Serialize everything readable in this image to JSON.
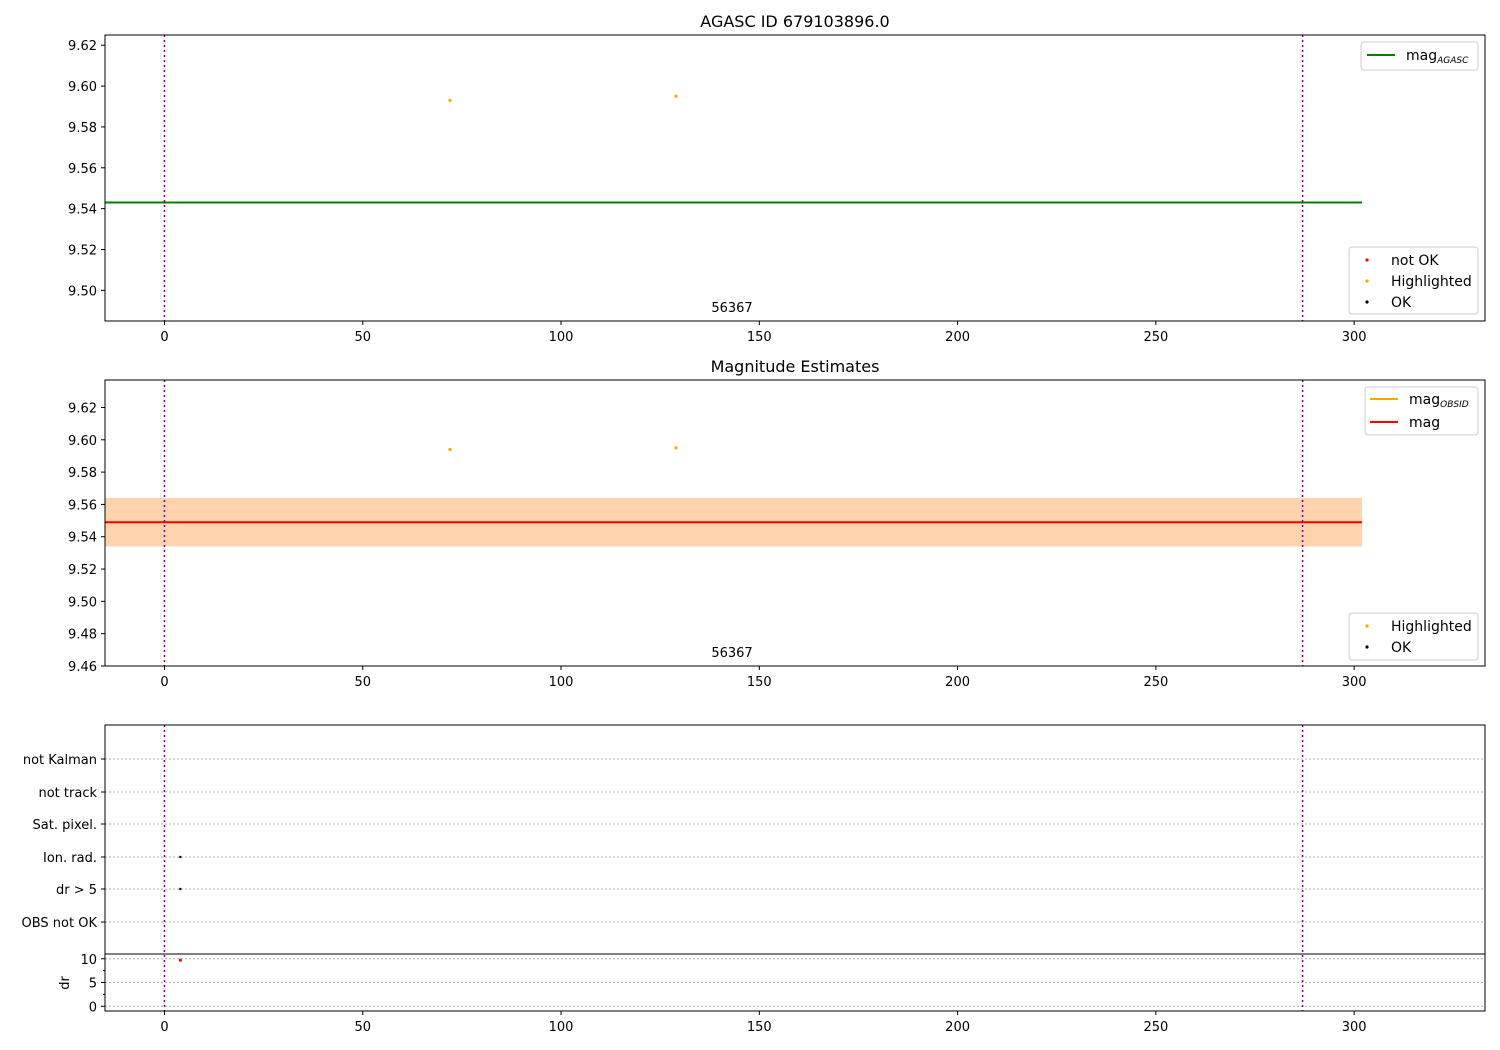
{
  "figure": {
    "background": "#ffffff"
  },
  "chart_data": [
    {
      "type": "scatter",
      "title": "AGASC ID 679103896.0",
      "annotation": "56367",
      "xlim": [
        -15,
        333
      ],
      "ylim": [
        9.485,
        9.625
      ],
      "xticks": [
        0,
        50,
        100,
        150,
        200,
        250,
        300
      ],
      "yticks": [
        9.5,
        9.52,
        9.54,
        9.56,
        9.58,
        9.6,
        9.62
      ],
      "ytick_labels": [
        "9.50",
        "9.52",
        "9.54",
        "9.56",
        "9.58",
        "9.60",
        "9.62"
      ],
      "vlines": [
        0,
        287
      ],
      "hlines": [
        {
          "name": "mag",
          "sub": "AGASC",
          "y": 9.543,
          "x0": -15,
          "x1": 302,
          "color": "#008000"
        }
      ],
      "legend_lines": [
        {
          "name": "mag",
          "sub": "AGASC",
          "color": "#008000"
        }
      ],
      "legend_points": [
        {
          "name": "not OK",
          "color": "#ff0000"
        },
        {
          "name": "Highlighted",
          "color": "#ffa500"
        },
        {
          "name": "OK",
          "color": "#000000"
        }
      ],
      "series": [
        {
          "name": "Highlighted",
          "color": "#ffa500",
          "points": [
            [
              72,
              9.593
            ],
            [
              129,
              9.595
            ]
          ]
        }
      ]
    },
    {
      "type": "scatter",
      "title": "Magnitude Estimates",
      "annotation": "56367",
      "xlim": [
        -15,
        333
      ],
      "ylim": [
        9.46,
        9.637
      ],
      "xticks": [
        0,
        50,
        100,
        150,
        200,
        250,
        300
      ],
      "yticks": [
        9.46,
        9.48,
        9.5,
        9.52,
        9.54,
        9.56,
        9.58,
        9.6,
        9.62
      ],
      "ytick_labels": [
        "9.46",
        "9.48",
        "9.50",
        "9.52",
        "9.54",
        "9.56",
        "9.58",
        "9.60",
        "9.62"
      ],
      "vlines": [
        0,
        287
      ],
      "bands": [
        {
          "y0": 9.534,
          "y1": 9.564,
          "x0": -15,
          "x1": 302,
          "color": "#ffc0cb",
          "opacity": 0.45
        },
        {
          "y0": 9.534,
          "y1": 9.564,
          "x0": -15,
          "x1": 302,
          "color": "#ffa500",
          "opacity": 0.25
        }
      ],
      "hlines": [
        {
          "name": "mag",
          "sub": "OBSID",
          "y": 9.549,
          "x0": -15,
          "x1": 302,
          "color": "#ffa500"
        },
        {
          "name": "mag",
          "sub": "",
          "y": 9.549,
          "x0": -15,
          "x1": 302,
          "color": "#ff0000"
        }
      ],
      "legend_lines": [
        {
          "name": "mag",
          "sub": "OBSID",
          "color": "#ffa500"
        },
        {
          "name": "mag",
          "sub": "",
          "color": "#ff0000"
        }
      ],
      "legend_points": [
        {
          "name": "Highlighted",
          "color": "#ffa500"
        },
        {
          "name": "OK",
          "color": "#000000"
        }
      ],
      "series": [
        {
          "name": "Highlighted",
          "color": "#ffa500",
          "points": [
            [
              72,
              9.594
            ],
            [
              129,
              9.595
            ]
          ]
        }
      ]
    },
    {
      "type": "scatter",
      "title": "",
      "xlim": [
        -15,
        333
      ],
      "xticks": [
        0,
        50,
        100,
        150,
        200,
        250,
        300
      ],
      "vlines": [
        0,
        287
      ],
      "categories": [
        "not Kalman",
        "not track",
        "Sat. pixel.",
        "Ion. rad.",
        "dr > 5",
        "OBS not OK"
      ],
      "flags": [
        {
          "category": "Ion. rad.",
          "x": 4
        },
        {
          "category": "dr > 5",
          "x": 4
        }
      ],
      "dr": {
        "ylabel": "dr",
        "ylim": [
          -1,
          11
        ],
        "yticks": [
          0,
          5,
          10
        ],
        "red_point": {
          "x": 4,
          "y": 9.7
        }
      }
    }
  ]
}
